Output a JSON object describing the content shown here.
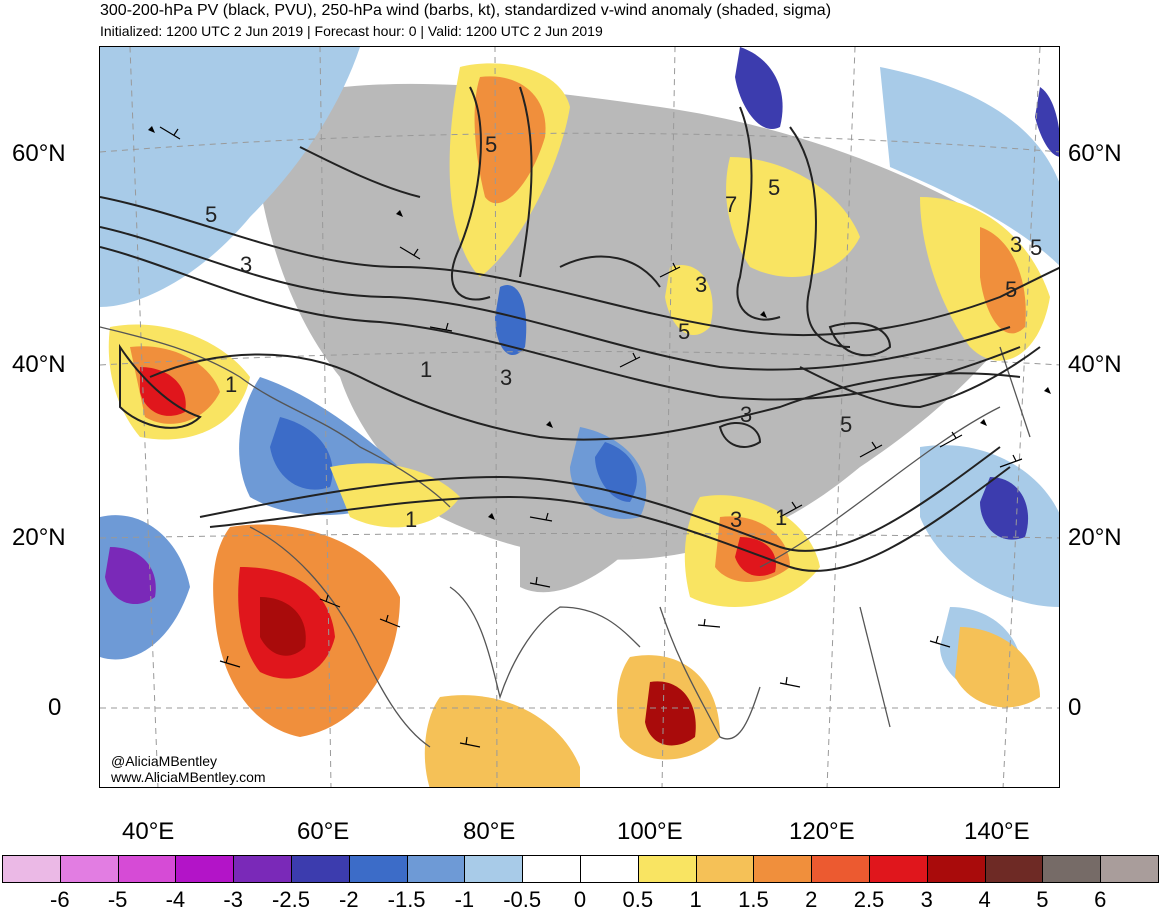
{
  "header": {
    "title": "300-200-hPa PV (black, PVU), 250-hPa wind (barbs, kt), standardized v-wind anomaly (shaded, sigma)",
    "subtitle": "Initialized: 1200 UTC 2 Jun 2019 | Forecast hour: 0 | Valid: 1200 UTC 2 Jun 2019"
  },
  "map": {
    "lat_labels": [
      "60°N",
      "40°N",
      "20°N",
      "0"
    ],
    "lon_labels": [
      "40°E",
      "60°E",
      "80°E",
      "100°E",
      "120°E",
      "140°E"
    ],
    "credit_handle": "@AliciaMBentley",
    "credit_url": "www.AliciaMBentley.com",
    "contour_labels": [
      "5",
      "5",
      "3",
      "3",
      "1",
      "1",
      "1",
      "3",
      "5",
      "5",
      "5",
      "3",
      "1",
      "3",
      "3",
      "5",
      "5",
      "7"
    ]
  },
  "colorbar": {
    "labels": [
      "-6",
      "-5",
      "-4",
      "-3",
      "-2.5",
      "-2",
      "-1.5",
      "-1",
      "-0.5",
      "0",
      "0.5",
      "1",
      "1.5",
      "2",
      "2.5",
      "3",
      "4",
      "5",
      "6"
    ],
    "colors": [
      "#ebb9e6",
      "#e27de2",
      "#d64bd6",
      "#b314c8",
      "#7a29b8",
      "#3c3cae",
      "#3c6cc8",
      "#6e9ad6",
      "#a8cbe8",
      "#ffffff",
      "#ffffff",
      "#f9e462",
      "#f5c157",
      "#f08f3c",
      "#ec5a30",
      "#e0161c",
      "#a90b0b",
      "#6e2a25",
      "#766b67",
      "#a99d9b"
    ]
  }
}
